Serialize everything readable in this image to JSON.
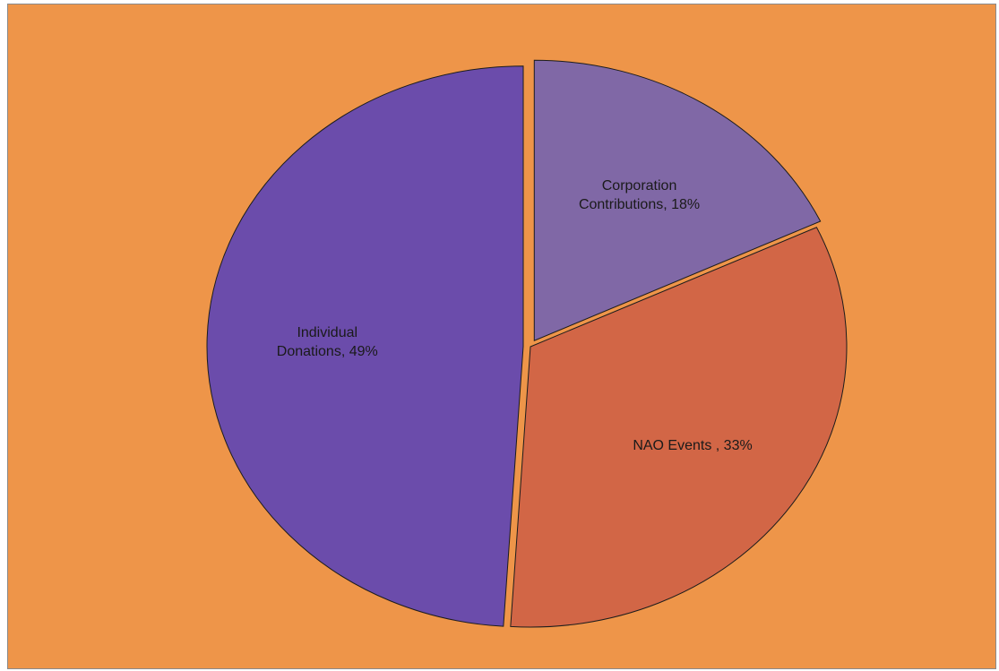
{
  "chart_data": {
    "type": "pie",
    "title": "",
    "background_color": "#EE9549",
    "slices": [
      {
        "name": "Corporation Contributions",
        "value": 18,
        "label_lines": [
          "Corporation",
          "Contributions, 18%"
        ],
        "color": "#8068A6",
        "exploded": true
      },
      {
        "name": "NAO Events",
        "value": 33,
        "label_lines": [
          "NAO Events , 33%"
        ],
        "color": "#D26646",
        "exploded": false
      },
      {
        "name": "Individual Donations",
        "value": 49,
        "label_lines": [
          "Individual",
          "Donations, 49%"
        ],
        "color": "#6B4CAB",
        "exploded": true
      }
    ],
    "legend": "none"
  }
}
